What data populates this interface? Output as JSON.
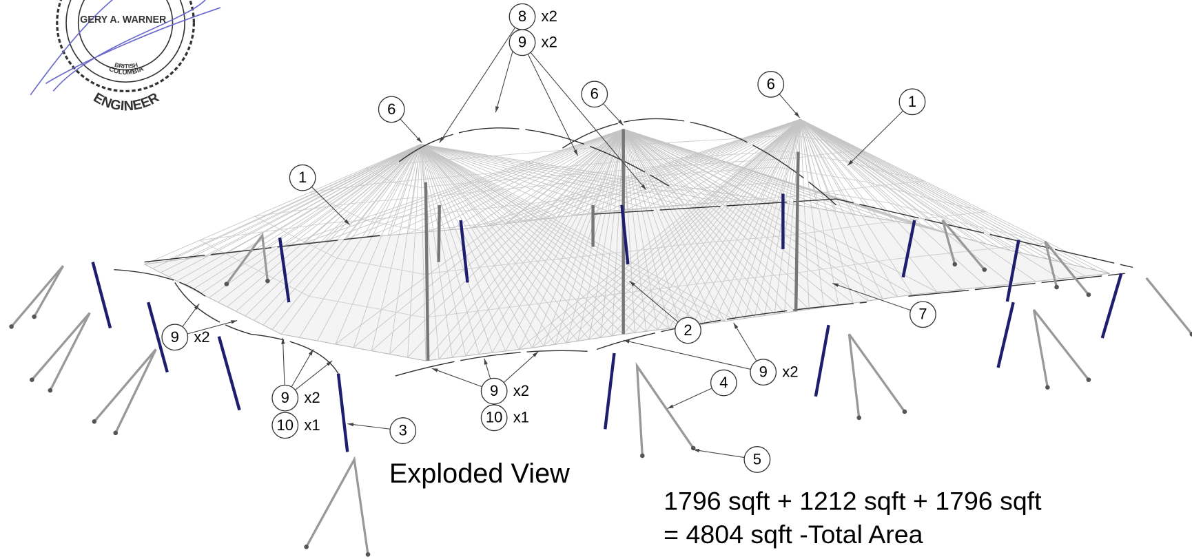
{
  "stamp": {
    "name": "GERY A. WARNER",
    "region_top": "BRITISH",
    "region_bottom": "COLUMBIA",
    "title": "ENGINEER"
  },
  "callouts": [
    {
      "id": "8",
      "qty": "x2"
    },
    {
      "id": "9",
      "qty": "x2"
    },
    {
      "id": "6"
    },
    {
      "id": "6"
    },
    {
      "id": "6"
    },
    {
      "id": "1"
    },
    {
      "id": "1"
    },
    {
      "id": "9",
      "qty": "x2"
    },
    {
      "id": "2"
    },
    {
      "id": "7"
    },
    {
      "id": "9",
      "qty": "x2"
    },
    {
      "id": "4"
    },
    {
      "id": "5"
    },
    {
      "id": "3"
    },
    {
      "id": "9",
      "qty": "x2"
    },
    {
      "id": "10",
      "qty": "x1"
    },
    {
      "id": "9",
      "qty": "x2"
    },
    {
      "id": "10",
      "qty": "x1"
    }
  ],
  "caption": "Exploded View",
  "area": {
    "line1": "1796 sqft + 1212 sqft + 1796 sqft",
    "line2": "= 4804 sqft -Total Area"
  }
}
